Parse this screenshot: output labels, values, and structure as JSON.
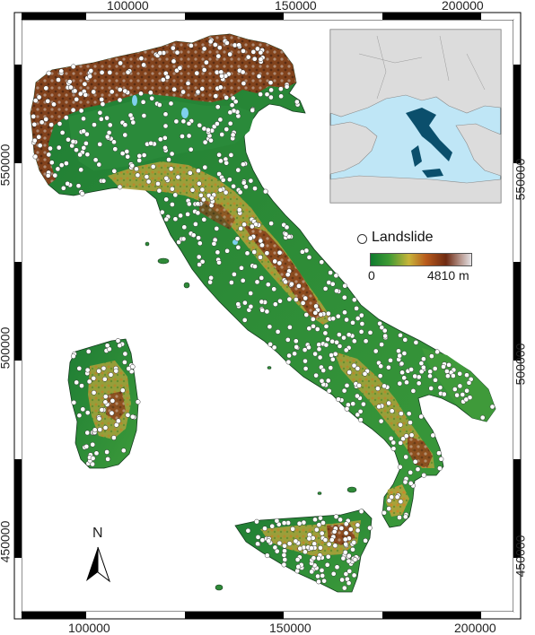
{
  "map": {
    "x_ticks": [
      "100000",
      "150000",
      "200000"
    ],
    "y_ticks": [
      "550000",
      "500000",
      "450000"
    ],
    "north_label": "N",
    "legend": {
      "symbol_label": "Landslide",
      "elevation_min": "0",
      "elevation_max": "4810 m"
    },
    "colors": {
      "sea": "#ffffff",
      "lowland": "#1f7a32",
      "hills": "#c8b43a",
      "mountains": "#7a3416",
      "peaks": "#d9d4d6",
      "inset_sea": "#bfe6f6",
      "inset_land": "#dcdcdc",
      "inset_italy": "#0b4f6c",
      "landslide_marker": "#ffffff"
    },
    "icons": [
      "north-arrow-icon",
      "landslide-marker-icon"
    ]
  }
}
